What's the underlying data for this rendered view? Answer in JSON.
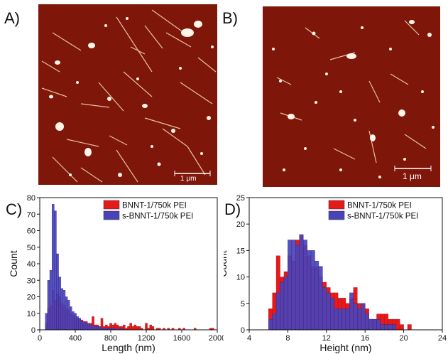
{
  "panels": {
    "a": {
      "label": "A)",
      "scale_bar": "1 μm"
    },
    "b": {
      "label": "B)",
      "scale_bar": "1 μm"
    },
    "c": {
      "label": "C)"
    },
    "d": {
      "label": "D)"
    }
  },
  "colors": {
    "afm_background": "#7a1508",
    "afm_feature": "#f4e6d0",
    "series_red": "#e8191a",
    "series_blue": "#4a43b8"
  },
  "chart_data": [
    {
      "type": "bar",
      "subtype": "histogram",
      "xlabel": "Length (nm)",
      "ylabel": "Count",
      "xlim": [
        0,
        2000
      ],
      "ylim": [
        0,
        80
      ],
      "xticks": [
        0,
        400,
        800,
        1200,
        1600,
        2000
      ],
      "yticks": [
        0,
        10,
        20,
        30,
        40,
        50,
        60,
        70,
        80
      ],
      "bin_width": 25,
      "legend_position": "top-right",
      "series": [
        {
          "name": "BNNT-1/750k PEI",
          "color": "#e8191a",
          "x": [
            75,
            100,
            125,
            150,
            175,
            200,
            225,
            250,
            275,
            300,
            325,
            350,
            375,
            400,
            425,
            450,
            475,
            500,
            525,
            550,
            575,
            600,
            625,
            650,
            675,
            700,
            725,
            750,
            775,
            800,
            825,
            850,
            875,
            900,
            925,
            950,
            975,
            1000,
            1025,
            1050,
            1075,
            1100,
            1125,
            1150,
            1175,
            1200,
            1225,
            1250,
            1275,
            1300,
            1325,
            1350,
            1375,
            1400,
            1425,
            1450,
            1475,
            1500,
            1525,
            1550,
            1575,
            1600,
            1625,
            1650,
            1675,
            1700,
            1725,
            1750,
            1775,
            1800,
            1825,
            1850,
            1875,
            1900,
            1925,
            1950
          ],
          "values": [
            4,
            13,
            15,
            24,
            18,
            22,
            20,
            16,
            15,
            13,
            12,
            10,
            9,
            8,
            7,
            7,
            6,
            5,
            5,
            4,
            4,
            8,
            3,
            3,
            2,
            7,
            2,
            3,
            2,
            4,
            3,
            4,
            3,
            2,
            2,
            3,
            1,
            2,
            4,
            2,
            3,
            2,
            2,
            1,
            0,
            4,
            1,
            3,
            2,
            0,
            1,
            1,
            0,
            1,
            0,
            1,
            0,
            1,
            0,
            0,
            1,
            0,
            1,
            0,
            0,
            0,
            0,
            1,
            0,
            0,
            0,
            0,
            0,
            0,
            1,
            1
          ]
        },
        {
          "name": "s-BNNT-1/750k PEI",
          "color": "#4a43b8",
          "x": [
            75,
            100,
            125,
            150,
            175,
            200,
            225,
            250,
            275,
            300,
            325,
            350,
            375,
            400,
            425,
            450,
            475,
            500,
            525,
            550,
            575,
            600,
            625,
            650,
            675,
            700,
            725,
            750,
            775,
            800,
            825,
            850,
            875,
            900,
            925
          ],
          "values": [
            10,
            30,
            36,
            76,
            72,
            46,
            32,
            25,
            24,
            20,
            18,
            14,
            11,
            10,
            8,
            7,
            5,
            5,
            4,
            4,
            3,
            3,
            2,
            2,
            2,
            1,
            1,
            1,
            1,
            1,
            1,
            1,
            0,
            1,
            1
          ]
        }
      ]
    },
    {
      "type": "bar",
      "subtype": "histogram",
      "xlabel": "Height (nm)",
      "ylabel": "Count",
      "xlim": [
        4,
        24
      ],
      "ylim": [
        0,
        25
      ],
      "xticks": [
        4,
        8,
        12,
        16,
        20,
        24
      ],
      "yticks": [
        0,
        5,
        10,
        15,
        20,
        25
      ],
      "bin_width": 0.4,
      "legend_position": "top-right",
      "series": [
        {
          "name": "BNNT-1/750k PEI",
          "color": "#e8191a",
          "x": [
            6.2,
            6.6,
            7.0,
            7.4,
            7.8,
            8.2,
            8.6,
            9.0,
            9.4,
            9.8,
            10.2,
            10.6,
            11.0,
            11.4,
            11.8,
            12.2,
            12.6,
            13.0,
            13.4,
            13.8,
            14.2,
            14.6,
            15.0,
            15.4,
            15.8,
            16.2,
            16.6,
            17.0,
            17.4,
            17.8,
            18.2,
            18.6,
            19.0,
            19.4,
            19.8,
            20.2,
            20.6
          ],
          "values": [
            4,
            7,
            14,
            10,
            11,
            14,
            13,
            17,
            18,
            16,
            14,
            12,
            12,
            10,
            9,
            8,
            7,
            7,
            6,
            6,
            5,
            6,
            8,
            5,
            5,
            4,
            2,
            2,
            3,
            3,
            3,
            2,
            2,
            2,
            1,
            0,
            1
          ]
        },
        {
          "name": "s-BNNT-1/750k PEI",
          "color": "#4a43b8",
          "x": [
            6.2,
            6.6,
            7.0,
            7.4,
            7.8,
            8.2,
            8.6,
            9.0,
            9.4,
            9.8,
            10.2,
            10.6,
            11.0,
            11.4,
            11.8,
            12.2,
            12.6,
            13.0,
            13.4,
            13.8,
            14.2,
            14.6,
            15.0,
            15.4,
            15.8,
            16.2,
            16.6,
            17.0,
            17.4,
            17.8,
            18.2,
            18.6,
            19.0
          ],
          "values": [
            2,
            3,
            7,
            9,
            10,
            17,
            17,
            16,
            18,
            17,
            15,
            15,
            13,
            12,
            8,
            7,
            6,
            4,
            4,
            4,
            4,
            7,
            5,
            4,
            5,
            3,
            2,
            2,
            2,
            1,
            1,
            1,
            1
          ]
        }
      ]
    }
  ]
}
